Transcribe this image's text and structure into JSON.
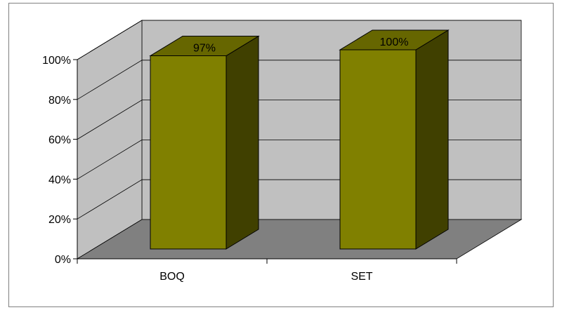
{
  "chart_data": {
    "type": "bar",
    "style": "3d-column",
    "categories": [
      "BOQ",
      "SET"
    ],
    "values": [
      97,
      100
    ],
    "data_labels": [
      "97%",
      "100%"
    ],
    "ylim": [
      0,
      100
    ],
    "y_ticks": [
      "0%",
      "20%",
      "40%",
      "60%",
      "80%",
      "100%"
    ],
    "grid": true,
    "legend": "none",
    "colors": {
      "bar_front": "#808000",
      "bar_top": "#666600",
      "bar_side": "#404000",
      "back_wall": "#c0c0c0",
      "floor": "#808080",
      "gridline": "#000000"
    }
  }
}
